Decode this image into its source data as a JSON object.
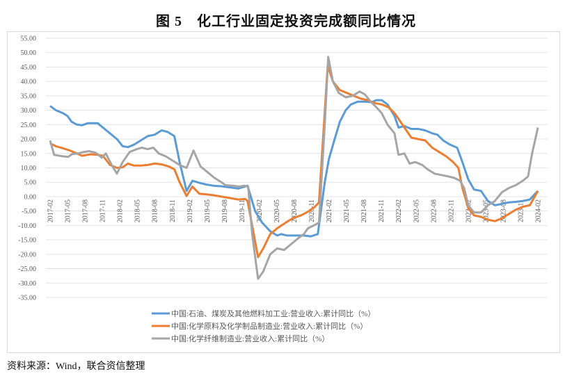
{
  "title": "图 5　化工行业固定投资完成额同比情况",
  "source": "资料来源：Wind，联合资信整理",
  "chart_data": {
    "type": "line",
    "title": "图 5　化工行业固定投资完成额同比情况",
    "xlabel": "",
    "ylabel": "",
    "ylim": [
      -35,
      55
    ],
    "ytick_step": 5,
    "yticks": [
      "55.00",
      "50.00",
      "45.00",
      "40.00",
      "35.00",
      "30.00",
      "25.00",
      "20.00",
      "15.00",
      "10.00",
      "5.00",
      "0.00",
      "-5.00",
      "-10.00",
      "-15.00",
      "-20.00",
      "-25.00",
      "-30.00",
      "-35.00"
    ],
    "x_unit": "months since 2017-02",
    "xlim": [
      0,
      84
    ],
    "xticks": [
      "2017-02",
      "2017-05",
      "2017-08",
      "2017-11",
      "2018-02",
      "2018-05",
      "2018-08",
      "2018-11",
      "2019-02",
      "2019-05",
      "2019-08",
      "2019-11",
      "2020-02",
      "2020-05",
      "2020-08",
      "2020-11",
      "2021-02",
      "2021-05",
      "2021-08",
      "2021-11",
      "2022-02",
      "2022-05",
      "2022-08",
      "2022-11",
      "2023-02",
      "2023-05",
      "2023-08",
      "2023-11",
      "2024-02"
    ],
    "grid": true,
    "legend_position": "bottom",
    "series": [
      {
        "name": "中国:石油、煤炭及其他燃料加工业:营业收入:累计同比（%）",
        "color": "#5b9bd5",
        "points": [
          [
            0,
            31.5
          ],
          [
            1,
            30
          ],
          [
            2.2,
            29
          ],
          [
            3,
            28
          ],
          [
            3.7,
            26
          ],
          [
            4.6,
            25
          ],
          [
            5.5,
            24.8
          ],
          [
            6.5,
            25.5
          ],
          [
            8.2,
            25.5
          ],
          [
            9.1,
            24
          ],
          [
            10.3,
            22
          ],
          [
            11.5,
            20
          ],
          [
            12.5,
            17.5
          ],
          [
            13.4,
            17.2
          ],
          [
            14.4,
            18
          ],
          [
            15.6,
            19.5
          ],
          [
            16.8,
            21
          ],
          [
            18,
            21.5
          ],
          [
            19.2,
            23
          ],
          [
            20.2,
            22.5
          ],
          [
            21.4,
            21
          ],
          [
            22.3,
            12
          ],
          [
            23.5,
            2
          ],
          [
            24.5,
            5.5
          ],
          [
            25.7,
            4.8
          ],
          [
            26.9,
            4.2
          ],
          [
            28.1,
            3.8
          ],
          [
            29.5,
            3.6
          ],
          [
            31,
            3.2
          ],
          [
            32.4,
            2.8
          ],
          [
            34,
            3.8
          ],
          [
            35.3,
            -5
          ],
          [
            36.5,
            -9
          ],
          [
            37.9,
            -12
          ],
          [
            39.1,
            -13.5
          ],
          [
            39.8,
            -13
          ],
          [
            40.8,
            -13.5
          ],
          [
            42.2,
            -13.5
          ],
          [
            43.7,
            -13.5
          ],
          [
            44.9,
            -13.8
          ],
          [
            46.1,
            -13
          ],
          [
            47.3,
            5
          ],
          [
            48,
            13
          ],
          [
            49,
            20
          ],
          [
            49.9,
            26
          ],
          [
            50.9,
            30
          ],
          [
            51.8,
            32
          ],
          [
            53,
            33
          ],
          [
            54.2,
            33
          ],
          [
            55.4,
            32.8
          ],
          [
            56.2,
            33.5
          ],
          [
            57.1,
            33.5
          ],
          [
            58.1,
            32
          ],
          [
            59.3,
            28
          ],
          [
            60,
            24
          ],
          [
            61,
            24.5
          ],
          [
            62.2,
            23.5
          ],
          [
            63.4,
            23.5
          ],
          [
            64.6,
            23
          ],
          [
            65.8,
            22
          ],
          [
            66.7,
            21.5
          ],
          [
            67.7,
            19.5
          ],
          [
            68.9,
            18
          ],
          [
            70.1,
            17
          ],
          [
            71,
            12
          ],
          [
            72,
            6
          ],
          [
            73,
            2.5
          ],
          [
            74.2,
            2
          ],
          [
            75.4,
            -1.5
          ],
          [
            76.6,
            -3
          ],
          [
            77.8,
            -2.5
          ],
          [
            79,
            -2
          ],
          [
            80.2,
            -1.8
          ],
          [
            81.4,
            -1.5
          ],
          [
            82.6,
            -1
          ],
          [
            84,
            2
          ]
        ]
      },
      {
        "name": "中国:化学原料及化学制品制造业:营业收入:累计同比（%）",
        "color": "#ed7d31",
        "points": [
          [
            0,
            18.5
          ],
          [
            1,
            17.5
          ],
          [
            2.2,
            16.8
          ],
          [
            3.4,
            16
          ],
          [
            4.6,
            15
          ],
          [
            5.5,
            14.2
          ],
          [
            7,
            14.7
          ],
          [
            8.2,
            14.5
          ],
          [
            9.1,
            14.2
          ],
          [
            10.3,
            11
          ],
          [
            11.5,
            10
          ],
          [
            12.5,
            10.2
          ],
          [
            13.4,
            11.5
          ],
          [
            14.4,
            10.8
          ],
          [
            15.6,
            10.8
          ],
          [
            16.8,
            11
          ],
          [
            18,
            11.5
          ],
          [
            19.2,
            11.2
          ],
          [
            20.4,
            10.5
          ],
          [
            21.4,
            9.5
          ],
          [
            22.3,
            5
          ],
          [
            23.5,
            0.2
          ],
          [
            24.5,
            3.5
          ],
          [
            25.7,
            1
          ],
          [
            26.9,
            0.8
          ],
          [
            28.1,
            0.5
          ],
          [
            29.5,
            0
          ],
          [
            31,
            -0.5
          ],
          [
            32.4,
            -1
          ],
          [
            33.6,
            -0.8
          ],
          [
            34,
            -1.5
          ],
          [
            34.8,
            -10
          ],
          [
            35.8,
            -21
          ],
          [
            36.7,
            -18
          ],
          [
            37.9,
            -13
          ],
          [
            39.1,
            -11
          ],
          [
            40.6,
            -9
          ],
          [
            41.8,
            -7.5
          ],
          [
            43.2,
            -6.5
          ],
          [
            44.6,
            -5
          ],
          [
            45.6,
            -3.5
          ],
          [
            46.3,
            -2
          ],
          [
            47,
            20
          ],
          [
            47.8,
            45.5
          ],
          [
            48.7,
            40
          ],
          [
            49.9,
            37
          ],
          [
            51.1,
            36
          ],
          [
            52.3,
            35
          ],
          [
            53.5,
            34
          ],
          [
            54.7,
            33.5
          ],
          [
            55.9,
            32.5
          ],
          [
            57.1,
            32
          ],
          [
            58.3,
            31
          ],
          [
            59.3,
            29
          ],
          [
            60,
            27
          ],
          [
            61,
            24
          ],
          [
            62.2,
            20.5
          ],
          [
            63.4,
            20
          ],
          [
            64.6,
            19.5
          ],
          [
            65.8,
            17
          ],
          [
            67,
            15.5
          ],
          [
            68.2,
            14
          ],
          [
            69.4,
            12
          ],
          [
            70.3,
            10
          ],
          [
            71,
            3
          ],
          [
            72,
            -4
          ],
          [
            73,
            -6.5
          ],
          [
            74.2,
            -7
          ],
          [
            75.4,
            -8
          ],
          [
            76.6,
            -8.5
          ],
          [
            77.8,
            -7.5
          ],
          [
            79,
            -6
          ],
          [
            80.2,
            -4.5
          ],
          [
            81.4,
            -3.5
          ],
          [
            82.6,
            -3
          ],
          [
            84,
            2
          ]
        ]
      },
      {
        "name": "中国:化学纤维制造业:营业收入:累计同比（%）",
        "color": "#a5a5a5",
        "points": [
          [
            0,
            19.5
          ],
          [
            0.7,
            14.5
          ],
          [
            2.2,
            14
          ],
          [
            3.1,
            13.8
          ],
          [
            3.8,
            14.8
          ],
          [
            4.8,
            15
          ],
          [
            5.8,
            15.5
          ],
          [
            6.7,
            15.8
          ],
          [
            7.9,
            15.2
          ],
          [
            8.9,
            13.5
          ],
          [
            9.6,
            15
          ],
          [
            10.6,
            11
          ],
          [
            11.5,
            8
          ],
          [
            12.5,
            12
          ],
          [
            13.7,
            15.5
          ],
          [
            14.9,
            16.5
          ],
          [
            15.8,
            17
          ],
          [
            16.8,
            16.5
          ],
          [
            17.8,
            17
          ],
          [
            18.7,
            15
          ],
          [
            19.9,
            14
          ],
          [
            21.1,
            12.5
          ],
          [
            22.3,
            11
          ],
          [
            23.5,
            10
          ],
          [
            24.7,
            16
          ],
          [
            25.9,
            10.5
          ],
          [
            27.1,
            8.5
          ],
          [
            28.3,
            6.5
          ],
          [
            29.5,
            5
          ],
          [
            30.2,
            4
          ],
          [
            31.4,
            3.8
          ],
          [
            32.6,
            3.5
          ],
          [
            33.4,
            3.8
          ],
          [
            34.1,
            3.5
          ],
          [
            34.8,
            -13
          ],
          [
            35.8,
            -28.5
          ],
          [
            36.7,
            -26
          ],
          [
            37.9,
            -20
          ],
          [
            39.1,
            -18
          ],
          [
            40.3,
            -18.5
          ],
          [
            41.5,
            -16.5
          ],
          [
            42.7,
            -14.5
          ],
          [
            43.7,
            -13
          ],
          [
            44.4,
            -11
          ],
          [
            45.4,
            -10
          ],
          [
            46.3,
            -9
          ],
          [
            47.3,
            25
          ],
          [
            47.9,
            48.5
          ],
          [
            48.7,
            40
          ],
          [
            49.7,
            36
          ],
          [
            50.9,
            34.5
          ],
          [
            52.1,
            35
          ],
          [
            53.3,
            36.5
          ],
          [
            54.2,
            35.5
          ],
          [
            55.2,
            33
          ],
          [
            56.2,
            31
          ],
          [
            57.1,
            29
          ],
          [
            58.1,
            25
          ],
          [
            59.3,
            22
          ],
          [
            60,
            14.5
          ],
          [
            61,
            15
          ],
          [
            61.9,
            11.5
          ],
          [
            62.9,
            12
          ],
          [
            64.1,
            11
          ],
          [
            65,
            9.5
          ],
          [
            66.2,
            8
          ],
          [
            67.4,
            7.5
          ],
          [
            68.6,
            7
          ],
          [
            69.6,
            6.5
          ],
          [
            70.6,
            5.5
          ],
          [
            71.3,
            3
          ],
          [
            72,
            -3
          ],
          [
            73,
            -5.5
          ],
          [
            74.2,
            -5.5
          ],
          [
            75.4,
            -3
          ],
          [
            76.6,
            -1.5
          ],
          [
            77.8,
            1.5
          ],
          [
            79,
            3
          ],
          [
            80.2,
            4
          ],
          [
            81.4,
            5.5
          ],
          [
            82.3,
            7
          ],
          [
            83,
            15
          ],
          [
            84,
            24
          ]
        ]
      }
    ]
  }
}
